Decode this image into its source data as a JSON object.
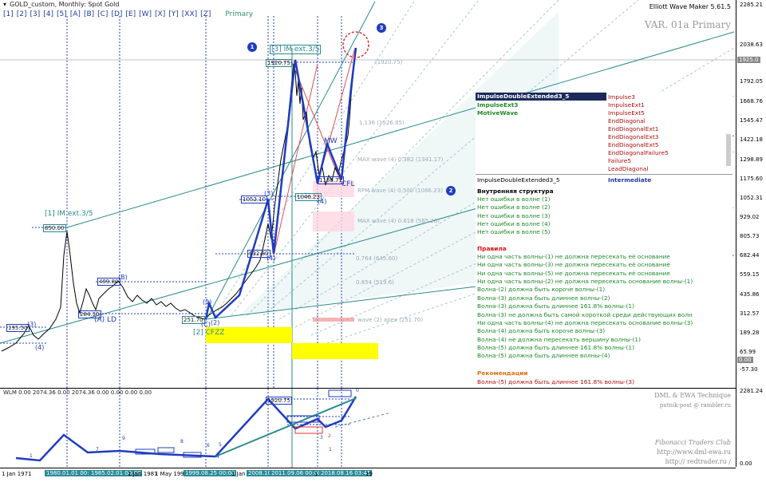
{
  "chart_header": {
    "symbol": "GOLD_custom, Monthly: Spot Gold",
    "indicator": "Elliott Wave Maker 5.61.5",
    "variant": "VAR. 01a Primary"
  },
  "timeframe_buttons": [
    "[1]",
    "[2]",
    "[3]",
    "[4]",
    "[5]",
    "[A]",
    "[B]",
    "[C]",
    "[D]",
    "[E]",
    "[W]",
    "[X]",
    "[Y]",
    "[XX]",
    "[Z]"
  ],
  "degree_label": "Primary",
  "price_axis": {
    "ticks": [
      "2285.21",
      "2038.63",
      "1792.05",
      "1668.76",
      "1545.47",
      "1422.18",
      "1298.89",
      "1175.60",
      "1052.31",
      "929.02",
      "805.73",
      "682.44",
      "559.15",
      "435.86",
      "312.57",
      "189.28",
      "65.99",
      "-57.30"
    ],
    "current_price": "1925.0",
    "zero_label": "0.00"
  },
  "lower_axis": {
    "ticks": [
      "2281.24",
      "0.00"
    ]
  },
  "time_axis": {
    "labels": [
      "1 Jan 1971",
      "1980.01.01 00:00",
      "1985.02.01 00:00",
      "1 Jan 1987",
      "1 May 1992",
      "1999.08.25 00:00",
      "1 Jan 2",
      "2008.10",
      "2011.09.06 00:00",
      "1",
      "2018.08.16 03:45",
      "19"
    ]
  },
  "wave_labels": {
    "im_ext_left": "[1] IM ext.3/5",
    "im_ext_top": "[3] IM ext.3/5",
    "price_850": "850.00",
    "price_1920": "1920.75",
    "price_1052": "1052.10",
    "price_1046": "1046.23",
    "price_499": "499.80",
    "price_284": "284.30",
    "price_251": "251.70",
    "price_195": "195.50",
    "price_632": "632.80",
    "price_1980": "1180.71",
    "lbl_2": "[2] CFZZ",
    "lbl_ald": "(A) LD",
    "lbl_b": "(B)",
    "lbl_3": "(3)",
    "lbl_4": "(4)",
    "lbl_mw": "MW",
    "lbl_cfl": "CFL",
    "lbl_1": "(1)",
    "lbl_2b": "(2)",
    "lbl_c": "(C)",
    "lbl_4b": "(4)",
    "lbl_3b": "(3)",
    "lbl_4c": "(4)",
    "fib_0764": "0.764 (645.60)",
    "fib_0854": "0.854 (519.6)",
    "max_wave": "MAX wave (4) 0.618 (585.28)",
    "rpm_wave": "RPM wave (4) 0.500 (1086.23)",
    "max_wave2": "MAX wave (4) 0.382 (1341.17)",
    "wave2_apex": "wave (2) apex (251.70)",
    "fib_136": "1.136 (1526.85)",
    "fib_1920": "(1920.75)",
    "circle_1": "1",
    "circle_2": "2",
    "circle_3": "3"
  },
  "panel": {
    "selected_header": "ImpulseDoubleExtended3_5",
    "left_options": [
      "ImpulseExt3",
      "MotiveWave"
    ],
    "right_options": [
      "Impulse3",
      "ImpulseExt1",
      "ImpulseExt5",
      "EndDiagonal",
      "EndDiagonalExt1",
      "EndDiagonalExt3",
      "EndDiagonalExt5",
      "EndDiagonalFailure5",
      "Failure5",
      "LeadDiagonal"
    ],
    "current_name": "ImpulseDoubleExtended3_5",
    "current_degree": "Intermediate",
    "structure_title": "Внутренняя структура",
    "structure_items": [
      "Нет ошибки в волне (1)",
      "Нет ошибки в волне (2)",
      "Нет ошибки в волне (3)",
      "Нет ошибки в волне (4)",
      "Нет ошибки в волне (5)"
    ],
    "rules_title": "Правила",
    "rules_items": [
      "Ни одна часть волны-(1) не должна пересекать её основание",
      "Ни одна часть волны-(3) не должна пересекать её основание",
      "Ни одна часть волны-(5) не должна пересекать её основание",
      "Ни одна часть волны-(2) не должна пересекать основание волны-(1)",
      "Волна-(2) должна быть короче волны-(1)",
      "Волна-(3) должна быть длиннее волны-(2)",
      "Волна-(3) должна быть длиннее 161.8% волны-(1)",
      "Волна-(3) не должна быть самой короткой среди действующих волн",
      "Ни одна часть волны-(4) не должна пересекать основание волны-(3)",
      "Волна-(4) должна быть короче волны-(3)",
      "Волна-(4) не должна пересекать вершину волны-(1)",
      "Волна-(5) должна быть длиннее 161.8% волны-(1)",
      "Волна-(5) должна быть длиннее волны-(4)"
    ],
    "recommend_title": "Рекомендации",
    "recommend_items": [
      "Волна-(5) должна быть длиннее 161.8% волны-(3)"
    ]
  },
  "lower_panel": {
    "label": "WLM 0.00 2074.36 0.00 2074.36 0.00 0.00 0.00 0.00",
    "credit_1": "DML & EWA Technique",
    "credit_2": "putnik-post @ rambler.ru",
    "credit_3": "Fibonacci  Traders  Club",
    "credit_4": "http://www.dml-ewa.ru",
    "credit_5": "http:// redtrader.ru /",
    "peak_label": "1920.75",
    "small_labels": [
      "1",
      "9",
      "8",
      "7",
      "6",
      "5",
      "4",
      "3",
      "2",
      "1",
      "0"
    ]
  },
  "colors": {
    "wave_blue": "#1f3cc0",
    "price_line": "#000000",
    "channel_teal": "#2a8a8a",
    "fib_red": "#e05050",
    "highlight_yellow": "#ffff00",
    "target_circle": "#e03030"
  }
}
